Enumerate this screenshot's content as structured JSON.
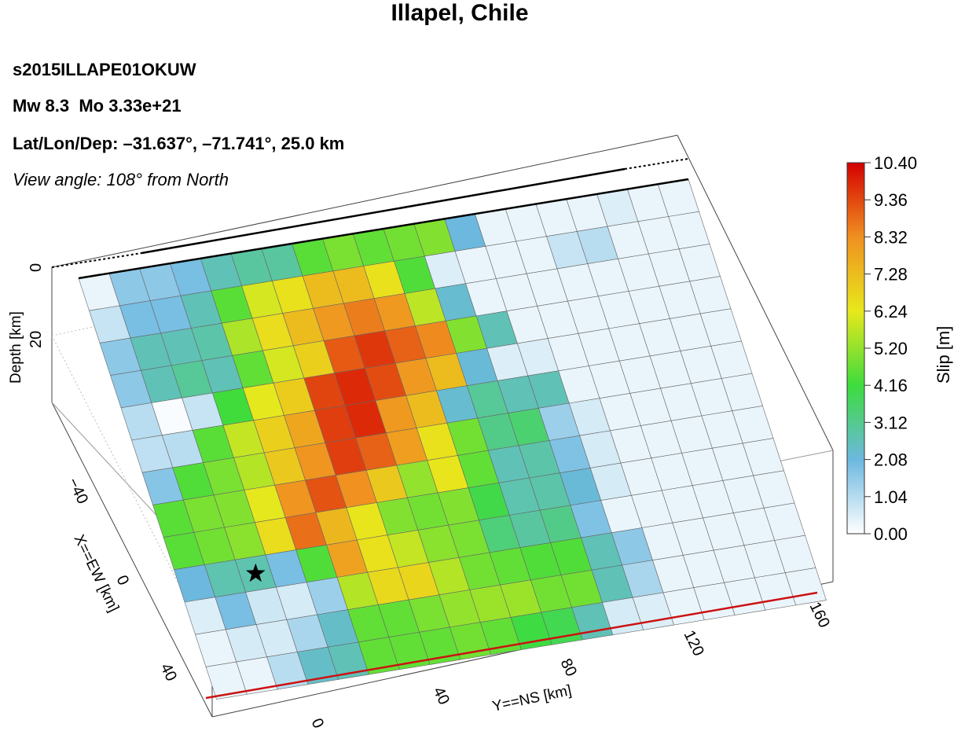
{
  "header": {
    "title": "Illapel, Chile",
    "event_id": "s2015ILLAPE01OKUW",
    "magnitude_line": "Mw 8.3  Mo 3.33e+21",
    "location_line": "Lat/Lon/Dep: –31.637°, –71.741°, 25.0 km",
    "view_line": "View angle: 108° from North"
  },
  "chart_data": {
    "type": "heatmap",
    "title": "Illapel, Chile",
    "grid_rows": 13,
    "grid_cols": 20,
    "axes": {
      "x": {
        "label": "X==EW [km]",
        "ticks": [
          "−40",
          "0",
          "40"
        ]
      },
      "y": {
        "label": "Y==NS [km]",
        "ticks": [
          "0",
          "40",
          "80",
          "120",
          "160"
        ]
      },
      "z": {
        "label": "Depth [km]",
        "ticks": [
          "0",
          "20"
        ]
      }
    },
    "colorbar": {
      "label": "Slip [m]",
      "min": 0.0,
      "max": 10.4,
      "ticks": [
        "10.40",
        "9.36",
        "8.32",
        "7.28",
        "6.24",
        "5.20",
        "4.16",
        "3.12",
        "2.08",
        "1.04",
        "0.00"
      ],
      "stops": [
        "#ffffff",
        "#6cb8e0",
        "#3ddc3d",
        "#e8e81c",
        "#f09020",
        "#d40000"
      ]
    },
    "hypocenter": {
      "row": 9,
      "col": 2
    },
    "slip": [
      [
        0.3,
        1.6,
        1.6,
        1.9,
        2.6,
        2.9,
        2.9,
        4.5,
        4.9,
        4.6,
        4.8,
        5.0,
        2.1,
        0.3,
        0.3,
        0.3,
        0.3,
        0.5,
        0.3,
        0.3
      ],
      [
        0.8,
        1.9,
        1.9,
        2.6,
        4.5,
        6.0,
        6.4,
        7.3,
        7.3,
        6.4,
        4.4,
        0.5,
        0.3,
        0.3,
        0.3,
        0.8,
        1.0,
        0.3,
        0.3,
        0.3
      ],
      [
        1.6,
        2.6,
        2.6,
        2.8,
        5.5,
        6.5,
        7.3,
        8.1,
        8.6,
        8.1,
        5.7,
        2.3,
        0.3,
        0.3,
        0.3,
        0.3,
        0.3,
        0.3,
        0.3,
        0.3
      ],
      [
        1.6,
        2.6,
        3.0,
        2.6,
        4.6,
        6.0,
        6.8,
        9.1,
        9.6,
        9.0,
        8.4,
        5.0,
        2.6,
        0.3,
        0.3,
        0.3,
        0.3,
        0.3,
        0.3,
        0.3
      ],
      [
        1.0,
        0.1,
        0.8,
        4.2,
        6.2,
        6.9,
        9.4,
        9.8,
        9.3,
        8.1,
        7.3,
        2.2,
        0.5,
        0.5,
        0.3,
        0.3,
        0.3,
        0.3,
        0.3,
        0.3
      ],
      [
        0.9,
        1.0,
        4.5,
        5.8,
        6.8,
        7.8,
        9.5,
        9.8,
        8.1,
        7.3,
        2.3,
        3.0,
        2.6,
        2.6,
        0.3,
        0.3,
        0.3,
        0.3,
        0.3,
        0.3
      ],
      [
        1.7,
        4.4,
        4.9,
        5.6,
        7.0,
        8.2,
        9.5,
        9.0,
        8.0,
        6.4,
        4.8,
        3.2,
        3.5,
        1.4,
        0.6,
        0.3,
        0.3,
        0.3,
        0.3,
        0.3
      ],
      [
        4.5,
        4.9,
        5.0,
        6.2,
        8.2,
        9.2,
        8.3,
        7.0,
        5.2,
        6.3,
        4.6,
        2.6,
        2.8,
        1.8,
        0.6,
        0.3,
        0.3,
        0.3,
        0.3,
        0.3
      ],
      [
        4.5,
        4.8,
        5.1,
        6.5,
        8.8,
        7.4,
        6.3,
        5.0,
        4.8,
        5.0,
        4.0,
        2.7,
        2.8,
        2.2,
        0.6,
        0.3,
        0.3,
        0.3,
        0.3,
        0.3
      ],
      [
        2.1,
        2.7,
        2.7,
        1.9,
        4.4,
        7.9,
        6.4,
        5.8,
        5.1,
        4.9,
        3.4,
        2.9,
        3.2,
        1.8,
        0.3,
        0.3,
        0.3,
        0.3,
        0.3,
        0.3
      ],
      [
        0.5,
        1.9,
        0.7,
        0.6,
        1.4,
        5.6,
        6.6,
        6.7,
        5.6,
        4.8,
        4.6,
        4.4,
        4.4,
        2.6,
        1.6,
        0.3,
        0.3,
        0.3,
        0.3,
        0.3
      ],
      [
        0.3,
        0.6,
        0.6,
        1.2,
        2.4,
        4.6,
        4.6,
        4.9,
        5.2,
        5.3,
        5.3,
        4.8,
        4.8,
        2.6,
        1.2,
        0.3,
        0.3,
        0.3,
        0.3,
        0.3
      ],
      [
        0.3,
        0.3,
        1.0,
        2.4,
        2.6,
        4.6,
        4.6,
        4.6,
        4.8,
        4.6,
        4.1,
        3.9,
        2.6,
        0.6,
        0.5,
        0.3,
        0.3,
        0.3,
        0.3,
        0.3
      ]
    ]
  }
}
